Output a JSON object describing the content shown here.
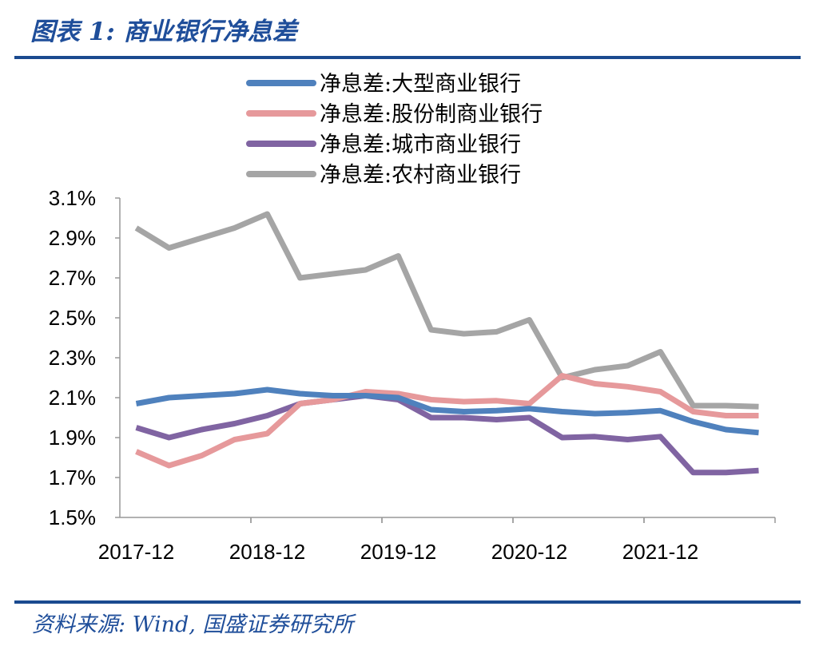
{
  "header": {
    "title": "图表 1:  商业银行净息差"
  },
  "footer": {
    "source": "资料来源:  Wind,  国盛证券研究所"
  },
  "chart_data": {
    "type": "line",
    "x": [
      "2017-12",
      "2018-03",
      "2018-06",
      "2018-09",
      "2018-12",
      "2019-03",
      "2019-06",
      "2019-09",
      "2019-12",
      "2020-03",
      "2020-06",
      "2020-09",
      "2020-12",
      "2021-03",
      "2021-06",
      "2021-09",
      "2021-12",
      "2022-03",
      "2022-06",
      "2022-09"
    ],
    "xticks": [
      "2017-12",
      "2018-12",
      "2019-12",
      "2020-12",
      "2021-12"
    ],
    "yticks": [
      "3.1%",
      "2.9%",
      "2.7%",
      "2.5%",
      "2.3%",
      "2.1%",
      "1.9%",
      "1.7%",
      "1.5%"
    ],
    "ylim": [
      1.5,
      3.1
    ],
    "yunit": "%",
    "grid": false,
    "legend_position": "top",
    "series": [
      {
        "name": "净息差:大型商业银行",
        "color": "#4f81bd",
        "values": [
          2.07,
          2.1,
          2.11,
          2.12,
          2.14,
          2.12,
          2.11,
          2.11,
          2.1,
          2.04,
          2.03,
          2.035,
          2.045,
          2.03,
          2.02,
          2.025,
          2.035,
          1.98,
          1.94,
          1.925
        ]
      },
      {
        "name": "净息差:股份制商业银行",
        "color": "#e6999b",
        "values": [
          1.83,
          1.76,
          1.81,
          1.89,
          1.92,
          2.07,
          2.09,
          2.13,
          2.12,
          2.09,
          2.08,
          2.085,
          2.07,
          2.21,
          2.17,
          2.155,
          2.13,
          2.03,
          2.01,
          2.01
        ]
      },
      {
        "name": "净息差:城市商业银行",
        "color": "#8064a2",
        "values": [
          1.95,
          1.9,
          1.94,
          1.97,
          2.01,
          2.07,
          2.09,
          2.11,
          2.09,
          2.0,
          2.0,
          1.99,
          2.0,
          1.9,
          1.905,
          1.89,
          1.905,
          1.725,
          1.725,
          1.735
        ]
      },
      {
        "name": "净息差:农村商业银行",
        "color": "#a5a5a5",
        "values": [
          2.95,
          2.85,
          2.9,
          2.95,
          3.02,
          2.7,
          2.72,
          2.74,
          2.81,
          2.44,
          2.42,
          2.43,
          2.49,
          2.2,
          2.24,
          2.26,
          2.33,
          2.06,
          2.06,
          2.055
        ]
      }
    ]
  }
}
